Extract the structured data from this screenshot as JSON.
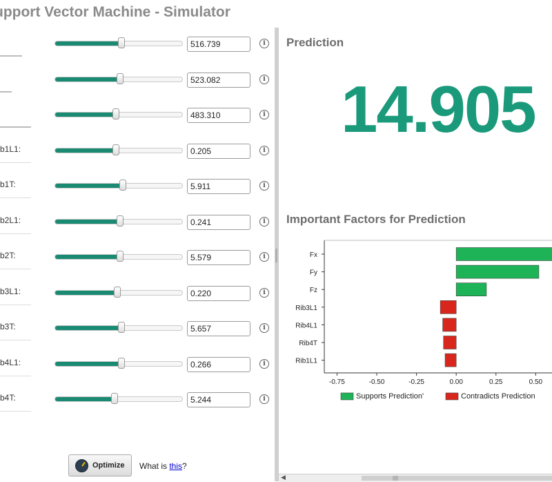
{
  "window_title": "upport Vector Machine - Simulator",
  "inputs": [
    {
      "label": "",
      "value": "516.739",
      "slider": 0.52
    },
    {
      "label": "",
      "value": "523.082",
      "slider": 0.51
    },
    {
      "label": "",
      "value": "483.310",
      "slider": 0.48
    },
    {
      "label": "b1L1:",
      "value": "0.205",
      "slider": 0.48
    },
    {
      "label": "b1T:",
      "value": "5.911",
      "slider": 0.53
    },
    {
      "label": "b2L1:",
      "value": "0.241",
      "slider": 0.51
    },
    {
      "label": "b2T:",
      "value": "5.579",
      "slider": 0.51
    },
    {
      "label": "b3L1:",
      "value": "0.220",
      "slider": 0.49
    },
    {
      "label": "b3T:",
      "value": "5.657",
      "slider": 0.52
    },
    {
      "label": "b4L1:",
      "value": "0.266",
      "slider": 0.52
    },
    {
      "label": "b4T:",
      "value": "5.244",
      "slider": 0.47
    }
  ],
  "info_glyph": "i",
  "prediction": {
    "heading": "Prediction",
    "value": "14.905",
    "color": "#1a9a7a"
  },
  "factors_heading": "Important Factors for Prediction",
  "chart_data": {
    "type": "bar",
    "orientation": "horizontal",
    "categories": [
      "Fx",
      "Fy",
      "Fz",
      "Rib3L1",
      "Rib4L1",
      "Rib4T",
      "Rib1L1"
    ],
    "values": [
      0.65,
      0.52,
      0.19,
      -0.1,
      -0.085,
      -0.08,
      -0.07
    ],
    "xticks": [
      "-0.75",
      "-0.50",
      "-0.25",
      "0.00",
      "0.25",
      "0.50"
    ],
    "xlim": [
      -0.83,
      0.62
    ],
    "legend": [
      {
        "label": "Supports Prediction'",
        "color": "#1db356"
      },
      {
        "label": "Contradicts Prediction",
        "color": "#d9261c"
      }
    ],
    "legend_position": "bottom",
    "grid": false
  },
  "optimize_label": "Optimize",
  "what_is_prefix": "What is ",
  "what_is_link": "this",
  "what_is_suffix": "?"
}
